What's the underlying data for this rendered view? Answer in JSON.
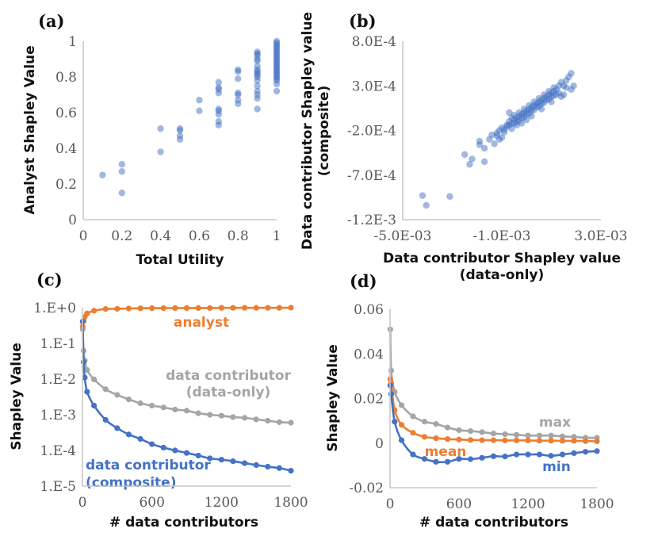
{
  "colors": {
    "blue": "#4472c4",
    "orange": "#ed7d31",
    "grey": "#a5a5a5"
  },
  "chart_data": [
    {
      "id": "a",
      "type": "scatter",
      "panel_label": "(a)",
      "xlabel": "Total Utility",
      "ylabel": "Analyst Shapley Value",
      "xlim": [
        0,
        1
      ],
      "ylim": [
        0,
        1
      ],
      "xticks": [
        0,
        0.2,
        0.4,
        0.6,
        0.8,
        1
      ],
      "xtick_labels": [
        "0",
        "0.2",
        "0.4",
        "0.6",
        "0.8",
        "1"
      ],
      "yticks": [
        0,
        0.2,
        0.4,
        0.6,
        0.8,
        1
      ],
      "ytick_labels": [
        "0",
        "0.2",
        "0.4",
        "0.6",
        "0.8",
        "1"
      ],
      "grid": false,
      "points": [
        [
          0.1,
          0.25
        ],
        [
          0.2,
          0.31
        ],
        [
          0.2,
          0.27
        ],
        [
          0.2,
          0.15
        ],
        [
          0.4,
          0.51
        ],
        [
          0.4,
          0.38
        ],
        [
          0.5,
          0.51
        ],
        [
          0.5,
          0.5
        ],
        [
          0.5,
          0.47
        ],
        [
          0.5,
          0.45
        ],
        [
          0.6,
          0.67
        ],
        [
          0.6,
          0.61
        ],
        [
          0.7,
          0.77
        ],
        [
          0.7,
          0.74
        ],
        [
          0.7,
          0.73
        ],
        [
          0.7,
          0.71
        ],
        [
          0.7,
          0.62
        ],
        [
          0.7,
          0.61
        ],
        [
          0.7,
          0.59
        ],
        [
          0.7,
          0.55
        ],
        [
          0.7,
          0.53
        ],
        [
          0.8,
          0.84
        ],
        [
          0.8,
          0.83
        ],
        [
          0.8,
          0.79
        ],
        [
          0.8,
          0.71
        ],
        [
          0.8,
          0.7
        ],
        [
          0.8,
          0.67
        ],
        [
          0.8,
          0.65
        ],
        [
          0.9,
          0.94
        ],
        [
          0.9,
          0.93
        ],
        [
          0.9,
          0.92
        ],
        [
          0.9,
          0.9
        ],
        [
          0.9,
          0.89
        ],
        [
          0.9,
          0.86
        ],
        [
          0.9,
          0.84
        ],
        [
          0.9,
          0.83
        ],
        [
          0.9,
          0.82
        ],
        [
          0.9,
          0.81
        ],
        [
          0.9,
          0.8
        ],
        [
          0.9,
          0.78
        ],
        [
          0.9,
          0.75
        ],
        [
          0.9,
          0.72
        ],
        [
          0.9,
          0.7
        ],
        [
          0.9,
          0.68
        ],
        [
          0.9,
          0.62
        ],
        [
          1,
          1.0
        ],
        [
          1,
          0.99
        ],
        [
          1,
          0.98
        ],
        [
          1,
          0.97
        ],
        [
          1,
          0.96
        ],
        [
          1,
          0.95
        ],
        [
          1,
          0.94
        ],
        [
          1,
          0.93
        ],
        [
          1,
          0.92
        ],
        [
          1,
          0.91
        ],
        [
          1,
          0.9
        ],
        [
          1,
          0.89
        ],
        [
          1,
          0.88
        ],
        [
          1,
          0.87
        ],
        [
          1,
          0.86
        ],
        [
          1,
          0.85
        ],
        [
          1,
          0.84
        ],
        [
          1,
          0.83
        ],
        [
          1,
          0.82
        ],
        [
          1,
          0.81
        ],
        [
          1,
          0.8
        ],
        [
          1,
          0.79
        ],
        [
          1,
          0.78
        ],
        [
          1,
          0.76
        ],
        [
          1,
          0.72
        ]
      ]
    },
    {
      "id": "b",
      "type": "scatter",
      "panel_label": "(b)",
      "xlabel": "Data contributor Shapley value (data-only)",
      "xlabel_lines": [
        "Data contributor Shapley value",
        "(data-only)"
      ],
      "ylabel": "Data contributor Shapley value (composite)",
      "ylabel_lines": [
        "Data contributor Shapley value",
        "(composite)"
      ],
      "xlim": [
        -0.005,
        0.003
      ],
      "ylim": [
        -0.0012,
        0.0008
      ],
      "xticks": [
        -0.005,
        -0.001,
        0.003
      ],
      "xtick_labels": [
        "-5.0E-03",
        "-1.0E-03",
        "3.0E-03"
      ],
      "yticks": [
        0.0008,
        0.0003,
        -0.0002,
        -0.0007,
        -0.0012
      ],
      "ytick_labels": [
        "8.0E-4",
        "3.0E-4",
        "-2.0E-4",
        "-7.0E-4",
        "-1.2E-3"
      ],
      "grid": false,
      "points": [
        [
          -0.0042,
          -0.00093
        ],
        [
          -0.00405,
          -0.00104
        ],
        [
          -0.0031,
          -0.00094
        ],
        [
          -0.0025,
          -0.00047
        ],
        [
          -0.0022,
          -0.00052
        ],
        [
          -0.0023,
          -0.00058
        ],
        [
          -0.0017,
          -0.00055
        ],
        [
          -0.0019,
          -0.00036
        ],
        [
          -0.0017,
          -0.0004
        ],
        [
          -0.0015,
          -0.0003
        ],
        [
          -0.0019,
          -0.00032
        ],
        [
          -0.0013,
          -0.00035
        ],
        [
          -0.0012,
          -0.00023
        ],
        [
          -0.0014,
          -0.00025
        ],
        [
          -0.0011,
          -0.0002
        ],
        [
          -0.001,
          -0.00017
        ],
        [
          -0.0009,
          -0.00019
        ],
        [
          -0.0008,
          -0.00014
        ],
        [
          -0.0007,
          -0.0001
        ],
        [
          -0.0006,
          -0.00012
        ],
        [
          -0.0005,
          -8e-05
        ],
        [
          -0.0004,
          -6e-05
        ],
        [
          -0.0003,
          -4e-05
        ],
        [
          -0.0002,
          -2e-05
        ],
        [
          -0.0001,
          0.0
        ],
        [
          0.0,
          2e-05
        ],
        [
          0.0001,
          4e-05
        ],
        [
          0.0002,
          6e-05
        ],
        [
          0.0003,
          8e-05
        ],
        [
          0.0004,
          0.0001
        ],
        [
          0.0005,
          0.00012
        ],
        [
          0.0006,
          0.00014
        ],
        [
          0.0007,
          0.00016
        ],
        [
          0.0008,
          0.00018
        ],
        [
          0.0009,
          0.0002
        ],
        [
          0.001,
          0.00022
        ],
        [
          0.0011,
          0.00024
        ],
        [
          -0.0006,
          -6e-05
        ],
        [
          -0.0004,
          -0.0001
        ],
        [
          -0.0002,
          -6e-05
        ],
        [
          0.0,
          -2e-05
        ],
        [
          0.0002,
          2e-05
        ],
        [
          0.0004,
          6e-05
        ],
        [
          0.0006,
          0.0001
        ],
        [
          0.0008,
          0.00014
        ],
        [
          0.001,
          0.00018
        ],
        [
          0.0012,
          0.0002
        ],
        [
          -0.0005,
          -3e-05
        ],
        [
          -0.0003,
          0.0
        ],
        [
          -0.0001,
          4e-05
        ],
        [
          0.0001,
          8e-05
        ],
        [
          0.0003,
          0.00012
        ],
        [
          0.0005,
          0.00016
        ],
        [
          0.0007,
          0.0002
        ],
        [
          0.0009,
          0.00024
        ],
        [
          0.0011,
          0.00028
        ],
        [
          0.0013,
          0.0003
        ],
        [
          -0.0007,
          -0.00014
        ],
        [
          -0.0005,
          -0.00012
        ],
        [
          -0.0003,
          -9e-05
        ],
        [
          -0.0001,
          -5e-05
        ],
        [
          0.0001,
          -1e-05
        ],
        [
          0.0003,
          3e-05
        ],
        [
          0.0005,
          7e-05
        ],
        [
          0.0007,
          0.00011
        ],
        [
          0.0009,
          0.00015
        ],
        [
          0.0011,
          0.00019
        ],
        [
          -0.0009,
          -0.00022
        ],
        [
          -0.0007,
          0.0
        ],
        [
          -0.0011,
          -0.0003
        ],
        [
          -0.0012,
          -0.00026
        ],
        [
          -0.001,
          -0.00028
        ],
        [
          -0.0006,
          -0.00018
        ],
        [
          -0.0002,
          -0.00012
        ],
        [
          0.0002,
          -4e-05
        ],
        [
          0.0006,
          4e-05
        ],
        [
          0.001,
          0.00012
        ],
        [
          0.0013,
          0.00022
        ],
        [
          0.0015,
          0.0003
        ],
        [
          0.0016,
          0.00036
        ],
        [
          0.0017,
          0.0004
        ],
        [
          0.0018,
          0.00044
        ],
        [
          0.0019,
          0.0003
        ],
        [
          0.0018,
          0.00026
        ],
        [
          0.0016,
          0.00028
        ],
        [
          0.0014,
          0.00034
        ],
        [
          0.0012,
          0.00026
        ],
        [
          0.0015,
          0.0002
        ],
        [
          0.0014,
          0.00018
        ],
        [
          -0.0008,
          -0.00016
        ],
        [
          -0.0004,
          -0.00014
        ],
        [
          0.0,
          -8e-05
        ]
      ]
    },
    {
      "id": "c",
      "type": "line",
      "panel_label": "(c)",
      "xlabel": "# data contributors",
      "ylabel": "Shapley Value",
      "yscale": "log",
      "xlim": [
        0,
        1800
      ],
      "ylim": [
        1e-05,
        1
      ],
      "xticks": [
        0,
        600,
        1200,
        1800
      ],
      "xtick_labels": [
        "0",
        "600",
        "1200",
        "1800"
      ],
      "yticks": [
        1,
        0.1,
        0.01,
        0.001,
        0.0001,
        1e-05
      ],
      "ytick_labels": [
        "1.E+0",
        "1.E-1",
        "1.E-2",
        "1.E-3",
        "1.E-4",
        "1.E-5"
      ],
      "grid": false,
      "x": [
        2,
        10,
        20,
        40,
        100,
        200,
        300,
        400,
        500,
        600,
        700,
        800,
        900,
        1000,
        1100,
        1200,
        1300,
        1400,
        1500,
        1600,
        1700,
        1800
      ],
      "series": [
        {
          "name": "analyst",
          "color_key": "orange",
          "values": [
            0.3,
            0.42,
            0.55,
            0.69,
            0.82,
            0.92,
            0.93,
            0.95,
            0.96,
            0.97,
            0.97,
            0.98,
            0.98,
            0.98,
            0.98,
            0.99,
            0.99,
            0.99,
            0.99,
            0.99,
            0.99,
            1.0
          ]
        },
        {
          "name": "data contributor (data-only)",
          "label_lines": [
            "data contributor",
            "(data-only)"
          ],
          "color_key": "grey",
          "values": [
            0.25,
            0.062,
            0.033,
            0.018,
            0.0098,
            0.0052,
            0.0036,
            0.0027,
            0.0021,
            0.0018,
            0.0016,
            0.0014,
            0.0013,
            0.0011,
            0.001,
            0.00094,
            0.00086,
            0.00082,
            0.00074,
            0.00068,
            0.00062,
            0.0006
          ]
        },
        {
          "name": "data contributor (composite)",
          "label_lines": [
            "data contributor",
            "(composite)"
          ],
          "color_key": "blue",
          "values": [
            0.41,
            0.03,
            0.011,
            0.0044,
            0.0018,
            0.00072,
            0.00042,
            0.00028,
            0.00021,
            0.00015,
            0.00012,
            0.0001,
            8.5e-05,
            7.2e-05,
            6e-05,
            5.5e-05,
            5e-05,
            4.4e-05,
            3.9e-05,
            3.5e-05,
            3.2e-05,
            2.7e-05
          ]
        }
      ]
    },
    {
      "id": "d",
      "type": "line",
      "panel_label": "(d)",
      "xlabel": "# data contributors",
      "ylabel": "Shapley Value",
      "xlim": [
        0,
        1800
      ],
      "ylim": [
        -0.02,
        0.06
      ],
      "xticks": [
        0,
        600,
        1200,
        1800
      ],
      "xtick_labels": [
        "0",
        "600",
        "1200",
        "1800"
      ],
      "yticks": [
        0.06,
        0.04,
        0.02,
        0,
        -0.02
      ],
      "ytick_labels": [
        "0.06",
        "0.04",
        "0.02",
        "0",
        "-0.02"
      ],
      "grid": false,
      "x": [
        2,
        10,
        40,
        100,
        200,
        300,
        400,
        500,
        600,
        700,
        800,
        900,
        1000,
        1100,
        1200,
        1300,
        1400,
        1500,
        1600,
        1700,
        1800
      ],
      "series": [
        {
          "name": "max",
          "color_key": "grey",
          "values": [
            0.051,
            0.0325,
            0.023,
            0.017,
            0.012,
            0.0096,
            0.0086,
            0.007,
            0.0058,
            0.0054,
            0.0049,
            0.0043,
            0.004,
            0.0037,
            0.0034,
            0.0034,
            0.0034,
            0.003,
            0.0028,
            0.0024,
            0.0024
          ]
        },
        {
          "name": "mean",
          "color_key": "orange",
          "values": [
            0.0287,
            0.027,
            0.0148,
            0.0082,
            0.0046,
            0.0028,
            0.0022,
            0.0018,
            0.0016,
            0.0014,
            0.0013,
            0.0013,
            0.0012,
            0.0012,
            0.0012,
            0.0011,
            0.0011,
            0.001,
            0.001,
            0.0009,
            0.0008
          ]
        },
        {
          "name": "min",
          "color_key": "blue",
          "values": [
            0.0259,
            0.022,
            0.0096,
            0.0013,
            -0.0051,
            -0.0071,
            -0.0084,
            -0.0084,
            -0.0071,
            -0.0072,
            -0.0066,
            -0.0059,
            -0.006,
            -0.0051,
            -0.0051,
            -0.0051,
            -0.0057,
            -0.0051,
            -0.0045,
            -0.0039,
            -0.0036
          ]
        }
      ]
    }
  ]
}
